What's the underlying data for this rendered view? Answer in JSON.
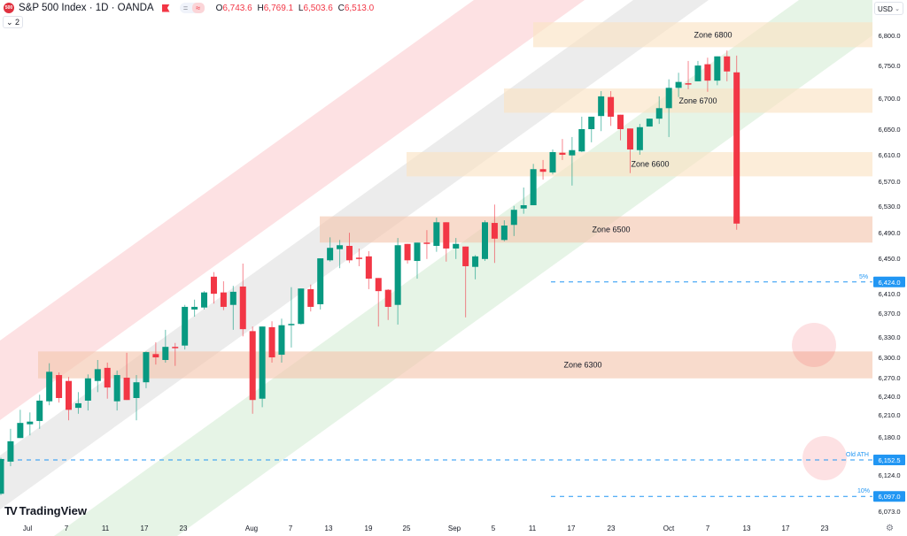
{
  "header": {
    "logo_text": "500",
    "title": "S&P 500 Index · 1D · OANDA",
    "btn_minus": "=",
    "btn_eq": "≈",
    "ohlc": {
      "o_label": "O",
      "o": "6,743.6",
      "h_label": "H",
      "h": "6,769.1",
      "l_label": "L",
      "l": "6,503.6",
      "c_label": "C",
      "c": "6,513.0"
    },
    "indicators_toggle": "2"
  },
  "currency": "USD",
  "branding": "TradingView",
  "colors": {
    "up": "#089981",
    "down": "#f23645",
    "line": "#2962ff",
    "label_bg": "#2196f3"
  },
  "chart_data": {
    "type": "candlestick",
    "title": "S&P 500 Index · 1D · OANDA",
    "ylim": [
      6060,
      6830
    ],
    "y_ticks": [
      "6,800.0",
      "6,750.0",
      "6,700.0",
      "6,650.0",
      "6,610.0",
      "6,570.0",
      "6,530.0",
      "6,490.0",
      "6,450.0",
      "6,410.0",
      "6,370.0",
      "6,330.0",
      "6,300.0",
      "6,270.0",
      "6,240.0",
      "6,210.0",
      "6,180.0",
      "6,124.0",
      "6,073.0"
    ],
    "x_ticks": [
      "Jul",
      "7",
      "11",
      "17",
      "23",
      "Aug",
      "7",
      "13",
      "19",
      "25",
      "Sep",
      "5",
      "11",
      "17",
      "23",
      "Oct",
      "7",
      "13",
      "17",
      "23"
    ],
    "ohlc": [
      [
        6101,
        6156,
        6099,
        6154
      ],
      [
        6150,
        6200,
        6143,
        6181
      ],
      [
        6186,
        6229,
        6186,
        6209
      ],
      [
        6207,
        6225,
        6190,
        6211
      ],
      [
        6212,
        6252,
        6200,
        6243
      ],
      [
        6242,
        6300,
        6236,
        6287
      ],
      [
        6282,
        6286,
        6240,
        6247
      ],
      [
        6273,
        6279,
        6213,
        6229
      ],
      [
        6232,
        6256,
        6223,
        6239
      ],
      [
        6243,
        6283,
        6228,
        6277
      ],
      [
        6273,
        6305,
        6256,
        6291
      ],
      [
        6293,
        6301,
        6246,
        6263
      ],
      [
        6242,
        6289,
        6228,
        6282
      ],
      [
        6278,
        6316,
        6244,
        6244
      ],
      [
        6247,
        6282,
        6213,
        6271
      ],
      [
        6271,
        6318,
        6262,
        6317
      ],
      [
        6314,
        6332,
        6298,
        6309
      ],
      [
        6305,
        6351,
        6301,
        6325
      ],
      [
        6325,
        6331,
        6296,
        6324
      ],
      [
        6327,
        6389,
        6321,
        6386
      ],
      [
        6382,
        6397,
        6371,
        6386
      ],
      [
        6385,
        6410,
        6382,
        6408
      ],
      [
        6432,
        6439,
        6391,
        6406
      ],
      [
        6408,
        6425,
        6381,
        6386
      ],
      [
        6389,
        6418,
        6351,
        6409
      ],
      [
        6417,
        6452,
        6341,
        6352
      ],
      [
        6349,
        6356,
        6223,
        6244
      ],
      [
        6246,
        6356,
        6233,
        6356
      ],
      [
        6355,
        6364,
        6301,
        6309
      ],
      [
        6313,
        6368,
        6301,
        6358
      ],
      [
        6358,
        6416,
        6324,
        6360
      ],
      [
        6360,
        6414,
        6359,
        6414
      ],
      [
        6413,
        6420,
        6379,
        6386
      ],
      [
        6390,
        6460,
        6382,
        6460
      ],
      [
        6457,
        6492,
        6455,
        6476
      ],
      [
        6474,
        6488,
        6445,
        6480
      ],
      [
        6479,
        6499,
        6453,
        6457
      ],
      [
        6461,
        6475,
        6448,
        6460
      ],
      [
        6463,
        6471,
        6413,
        6429
      ],
      [
        6430,
        6430,
        6356,
        6410
      ],
      [
        6412,
        6413,
        6366,
        6386
      ],
      [
        6389,
        6491,
        6359,
        6480
      ],
      [
        6482,
        6482,
        6452,
        6457
      ],
      [
        6456,
        6484,
        6429,
        6484
      ],
      [
        6484,
        6503,
        6459,
        6483
      ],
      [
        6479,
        6522,
        6470,
        6515
      ],
      [
        6515,
        6515,
        6455,
        6475
      ],
      [
        6475,
        6491,
        6459,
        6482
      ],
      [
        6478,
        6478,
        6370,
        6448
      ],
      [
        6447,
        6465,
        6428,
        6463
      ],
      [
        6459,
        6518,
        6456,
        6515
      ],
      [
        6514,
        6542,
        6453,
        6490
      ],
      [
        6488,
        6518,
        6486,
        6510
      ],
      [
        6511,
        6540,
        6494,
        6534
      ],
      [
        6536,
        6568,
        6528,
        6541
      ],
      [
        6541,
        6604,
        6541,
        6596
      ],
      [
        6596,
        6610,
        6580,
        6592
      ],
      [
        6591,
        6626,
        6588,
        6622
      ],
      [
        6621,
        6642,
        6610,
        6618
      ],
      [
        6617,
        6645,
        6571,
        6625
      ],
      [
        6623,
        6676,
        6622,
        6657
      ],
      [
        6657,
        6676,
        6637,
        6676
      ],
      [
        6677,
        6715,
        6654,
        6707
      ],
      [
        6706,
        6715,
        6662,
        6676
      ],
      [
        6679,
        6679,
        6640,
        6657
      ],
      [
        6658,
        6658,
        6590,
        6626
      ],
      [
        6625,
        6665,
        6618,
        6660
      ],
      [
        6661,
        6673,
        6661,
        6673
      ],
      [
        6673,
        6707,
        6665,
        6689
      ],
      [
        6689,
        6733,
        6645,
        6720
      ],
      [
        6720,
        6743,
        6706,
        6729
      ],
      [
        6727,
        6761,
        6718,
        6726
      ],
      [
        6730,
        6761,
        6730,
        6754
      ],
      [
        6756,
        6766,
        6714,
        6731
      ],
      [
        6731,
        6768,
        6724,
        6768
      ],
      [
        6768,
        6777,
        6730,
        6745
      ],
      [
        6743.6,
        6769.1,
        6503.6,
        6513.0
      ]
    ],
    "zones": [
      {
        "label": "Zone 6800",
        "top": 6820,
        "bottom": 6782,
        "color": "#fbe4c4"
      },
      {
        "label": "Zone 6700",
        "top": 6719,
        "bottom": 6682,
        "color": "#fbe4c4"
      },
      {
        "label": "Zone 6600",
        "top": 6622,
        "bottom": 6585,
        "color": "#fbe4c4"
      },
      {
        "label": "Zone 6500",
        "top": 6524,
        "bottom": 6484,
        "color": "#f4c7b0"
      },
      {
        "label": "Zone 6300",
        "top": 6318,
        "bottom": 6277,
        "color": "#f4c7b0"
      }
    ],
    "price_lines": [
      {
        "label": "5%",
        "value": "6,424.0",
        "price": 6424.0
      },
      {
        "label": "Old ATH",
        "value": "6,152.5",
        "price": 6152.5
      },
      {
        "label": "10%",
        "value": "6,097.0",
        "price": 6097.0
      }
    ]
  }
}
